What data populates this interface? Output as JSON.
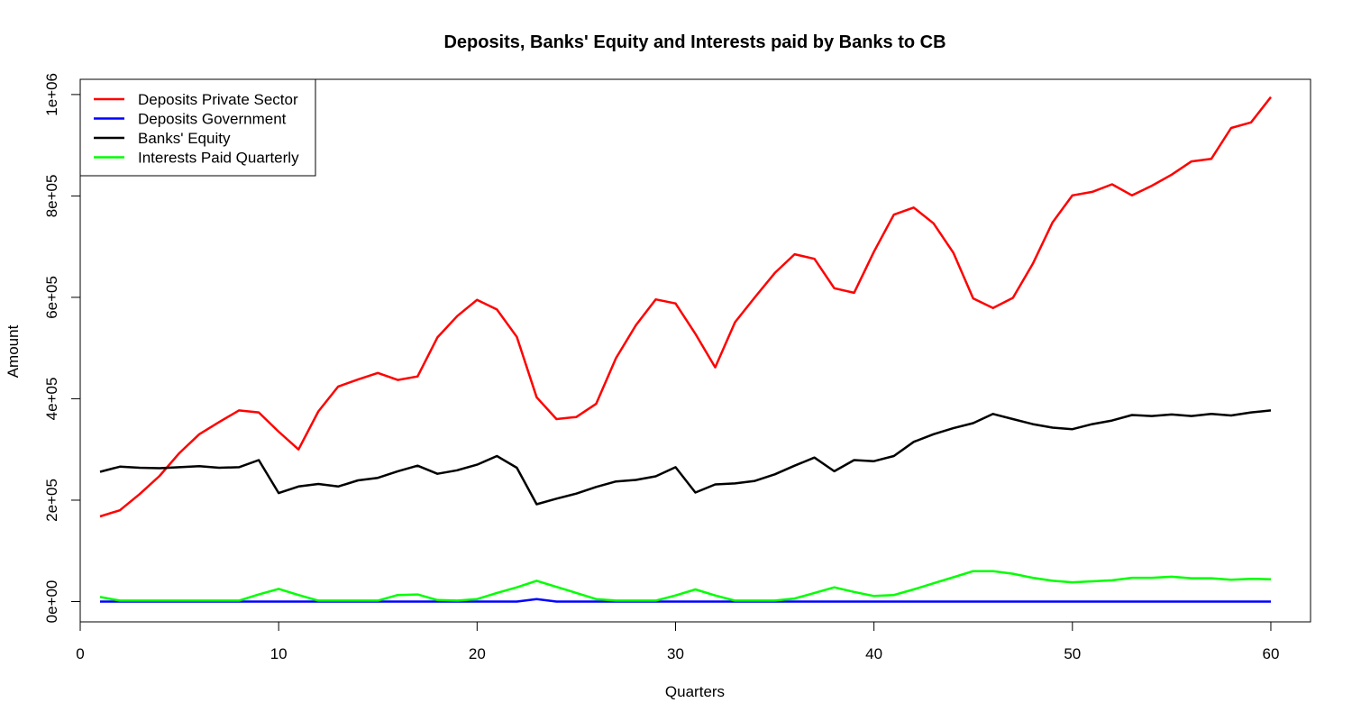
{
  "chart_data": {
    "type": "line",
    "title": "Deposits, Banks' Equity and Interests paid by Banks to CB",
    "xlabel": "Quarters",
    "ylabel": "Amount",
    "xlim": [
      0,
      62
    ],
    "ylim": [
      -40000,
      1030000
    ],
    "x_ticks": [
      0,
      10,
      20,
      30,
      40,
      50,
      60
    ],
    "y_ticks": [
      {
        "value": 0,
        "label": "0e+00"
      },
      {
        "value": 200000,
        "label": "2e+05"
      },
      {
        "value": 400000,
        "label": "4e+05"
      },
      {
        "value": 600000,
        "label": "6e+05"
      },
      {
        "value": 800000,
        "label": "8e+05"
      },
      {
        "value": 1000000,
        "label": "1e+06"
      }
    ],
    "grid": false,
    "legend_position": "top-left",
    "x": [
      1,
      2,
      3,
      4,
      5,
      6,
      7,
      8,
      9,
      10,
      11,
      12,
      13,
      14,
      15,
      16,
      17,
      18,
      19,
      20,
      21,
      22,
      23,
      24,
      25,
      26,
      27,
      28,
      29,
      30,
      31,
      32,
      33,
      34,
      35,
      36,
      37,
      38,
      39,
      40,
      41,
      42,
      43,
      44,
      45,
      46,
      47,
      48,
      49,
      50,
      51,
      52,
      53,
      54,
      55,
      56,
      57,
      58,
      59,
      60
    ],
    "series": [
      {
        "name": "Deposits Private Sector",
        "color": "#ff0000",
        "values": [
          168000,
          180000,
          212000,
          248000,
          293000,
          330000,
          354000,
          377000,
          373000,
          335000,
          300000,
          375000,
          424000,
          438000,
          451000,
          437000,
          444000,
          521000,
          563000,
          595000,
          576000,
          522000,
          403000,
          360000,
          364000,
          390000,
          480000,
          545000,
          596000,
          588000,
          528000,
          462000,
          551000,
          600000,
          648000,
          685000,
          676000,
          618000,
          609000,
          690000,
          763000,
          777000,
          746000,
          688000,
          598000,
          579000,
          599000,
          666000,
          748000,
          801000,
          808000,
          823000,
          801000,
          820000,
          842000,
          868000,
          873000,
          934000,
          945000,
          995000
        ]
      },
      {
        "name": "Deposits Government",
        "color": "#0000ff",
        "values": [
          0,
          0,
          0,
          0,
          0,
          0,
          0,
          0,
          0,
          0,
          0,
          0,
          0,
          0,
          0,
          0,
          0,
          0,
          0,
          0,
          0,
          0,
          5000,
          0,
          0,
          0,
          0,
          0,
          0,
          0,
          0,
          0,
          0,
          0,
          0,
          0,
          0,
          0,
          0,
          0,
          0,
          0,
          0,
          0,
          0,
          0,
          0,
          0,
          0,
          0,
          0,
          0,
          0,
          0,
          0,
          0,
          0,
          0,
          0,
          0
        ]
      },
      {
        "name": "Banks' Equity",
        "color": "#000000",
        "values": [
          256000,
          266000,
          264000,
          263000,
          265000,
          267000,
          264000,
          265000,
          279000,
          214000,
          227000,
          232000,
          227000,
          239000,
          244000,
          257000,
          268000,
          252000,
          259000,
          270000,
          287000,
          264000,
          192000,
          203000,
          213000,
          226000,
          237000,
          240000,
          247000,
          265000,
          215000,
          231000,
          233000,
          238000,
          251000,
          268000,
          284000,
          257000,
          279000,
          277000,
          287000,
          315000,
          330000,
          342000,
          352000,
          370000,
          360000,
          350000,
          343000,
          340000,
          350000,
          357000,
          368000,
          366000,
          369000,
          366000,
          370000,
          367000,
          373000,
          377000
        ]
      },
      {
        "name": "Interests Paid Quarterly",
        "color": "#00ff00",
        "values": [
          9000,
          2000,
          2000,
          2000,
          2000,
          2000,
          2000,
          2000,
          14000,
          25000,
          13000,
          2000,
          2000,
          2000,
          2000,
          13000,
          14000,
          3000,
          2000,
          5000,
          17000,
          28000,
          41000,
          29000,
          17000,
          5000,
          2000,
          2000,
          2000,
          12000,
          24000,
          12000,
          2000,
          2000,
          2000,
          6000,
          17000,
          28000,
          19000,
          11000,
          13000,
          24000,
          36000,
          48000,
          60000,
          60000,
          55000,
          47000,
          41000,
          38000,
          40000,
          42000,
          47000,
          47000,
          49000,
          46000,
          46000,
          43000,
          45000,
          44000
        ]
      }
    ]
  }
}
